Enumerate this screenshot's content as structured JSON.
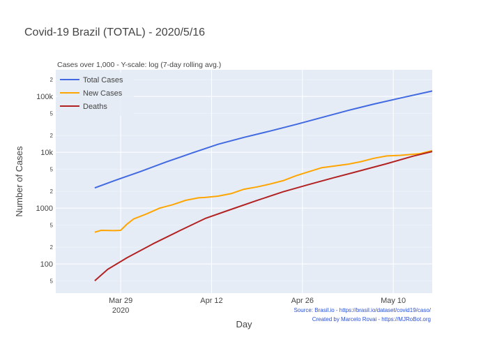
{
  "chart_data": {
    "type": "line",
    "title": "Covid-19 Brazil (TOTAL) - 2020/5/16",
    "subtitle": "Cases over 1,000 - Y-scale: log (7-day rolling avg.)",
    "xlabel": "Day",
    "ylabel": "Number of Cases",
    "y_scale": "log",
    "grid": true,
    "legend_position": "top-left",
    "x_ticks": [
      "Mar 29",
      "Apr 12",
      "Apr 26",
      "May 10"
    ],
    "x_tick_year": "2020",
    "y_major_ticks": [
      "100",
      "1000",
      "10k",
      "100k"
    ],
    "y_minor_ticks": [
      "5",
      "2",
      "5",
      "2",
      "5",
      "2",
      "5",
      "2",
      "5",
      "2"
    ],
    "x_range": [
      "2020-03-19",
      "2020-05-16"
    ],
    "y_range": [
      30,
      300000
    ],
    "series": [
      {
        "name": "Total Cases",
        "color": "#4169e1",
        "x": [
          "2020-03-25",
          "2020-03-28",
          "2020-04-01",
          "2020-04-05",
          "2020-04-09",
          "2020-04-13",
          "2020-04-17",
          "2020-04-21",
          "2020-04-25",
          "2020-04-29",
          "2020-05-03",
          "2020-05-07",
          "2020-05-11",
          "2020-05-16"
        ],
        "values": [
          2300,
          3100,
          4500,
          6700,
          9700,
          13900,
          18500,
          24000,
          31500,
          42000,
          56000,
          73000,
          93000,
          125000
        ]
      },
      {
        "name": "New Cases",
        "color": "#ffa500",
        "x": [
          "2020-03-25",
          "2020-03-26",
          "2020-03-28",
          "2020-03-29",
          "2020-03-30",
          "2020-03-31",
          "2020-04-02",
          "2020-04-04",
          "2020-04-06",
          "2020-04-08",
          "2020-04-10",
          "2020-04-11",
          "2020-04-13",
          "2020-04-15",
          "2020-04-17",
          "2020-04-19",
          "2020-04-21",
          "2020-04-23",
          "2020-04-25",
          "2020-04-27",
          "2020-04-29",
          "2020-05-01",
          "2020-05-03",
          "2020-05-05",
          "2020-05-07",
          "2020-05-09",
          "2020-05-11",
          "2020-05-14",
          "2020-05-16"
        ],
        "values": [
          370,
          400,
          395,
          400,
          520,
          640,
          790,
          1000,
          1150,
          1380,
          1530,
          1550,
          1640,
          1820,
          2180,
          2400,
          2700,
          3100,
          3800,
          4500,
          5300,
          5700,
          6100,
          6800,
          7800,
          8600,
          8800,
          9400,
          10700
        ]
      },
      {
        "name": "Deaths",
        "color": "#b22222",
        "x": [
          "2020-03-25",
          "2020-03-27",
          "2020-03-30",
          "2020-04-03",
          "2020-04-07",
          "2020-04-11",
          "2020-04-15",
          "2020-04-19",
          "2020-04-23",
          "2020-04-27",
          "2020-05-01",
          "2020-05-05",
          "2020-05-09",
          "2020-05-13",
          "2020-05-16"
        ],
        "values": [
          50,
          80,
          130,
          230,
          390,
          650,
          950,
          1370,
          1960,
          2650,
          3550,
          4700,
          6250,
          8500,
          10300
        ]
      }
    ]
  },
  "annotations": {
    "source": "Source: Brasil.io - https://brasil.io/dataset/covid19/caso/",
    "credit": "Created by Marcelo Rovai - https://MJRoBot.org"
  }
}
